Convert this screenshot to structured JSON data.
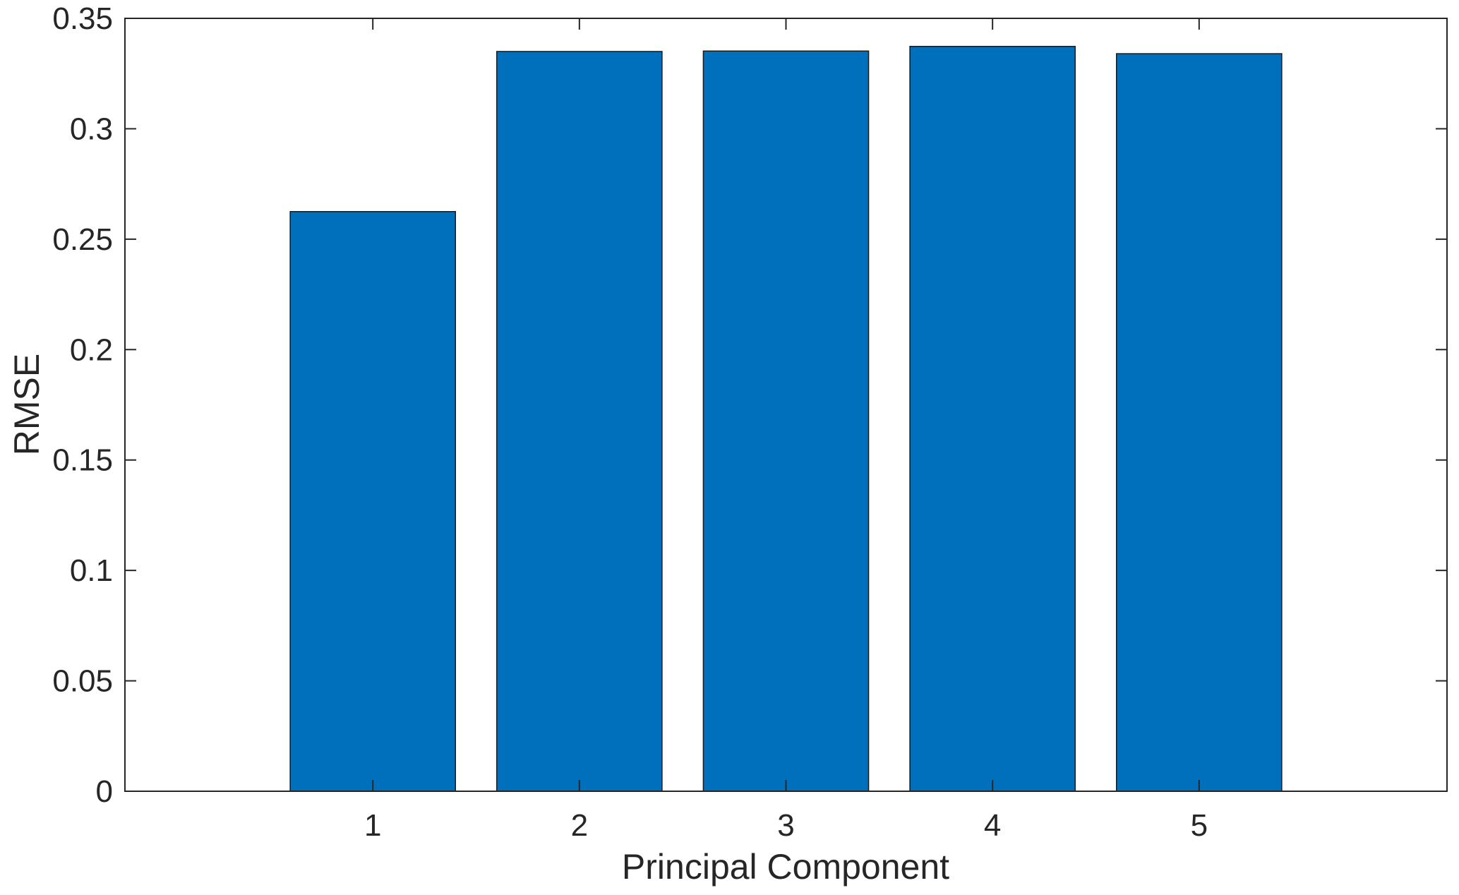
{
  "chart_data": {
    "type": "bar",
    "categories": [
      "1",
      "2",
      "3",
      "4",
      "5"
    ],
    "values": [
      0.2625,
      0.335,
      0.3352,
      0.3373,
      0.334
    ],
    "title": "",
    "xlabel": "Principal Component",
    "ylabel": "RMSE",
    "xlim": [
      -0.2,
      6.2
    ],
    "ylim": [
      0,
      0.35
    ],
    "yticks": [
      0,
      0.05,
      0.1,
      0.15,
      0.2,
      0.25,
      0.3,
      0.35
    ],
    "ytick_labels": [
      "0",
      "0.05",
      "0.1",
      "0.15",
      "0.2",
      "0.25",
      "0.3",
      "0.35"
    ],
    "bar_color": "#0070BD",
    "grid": false,
    "legend": "none"
  }
}
